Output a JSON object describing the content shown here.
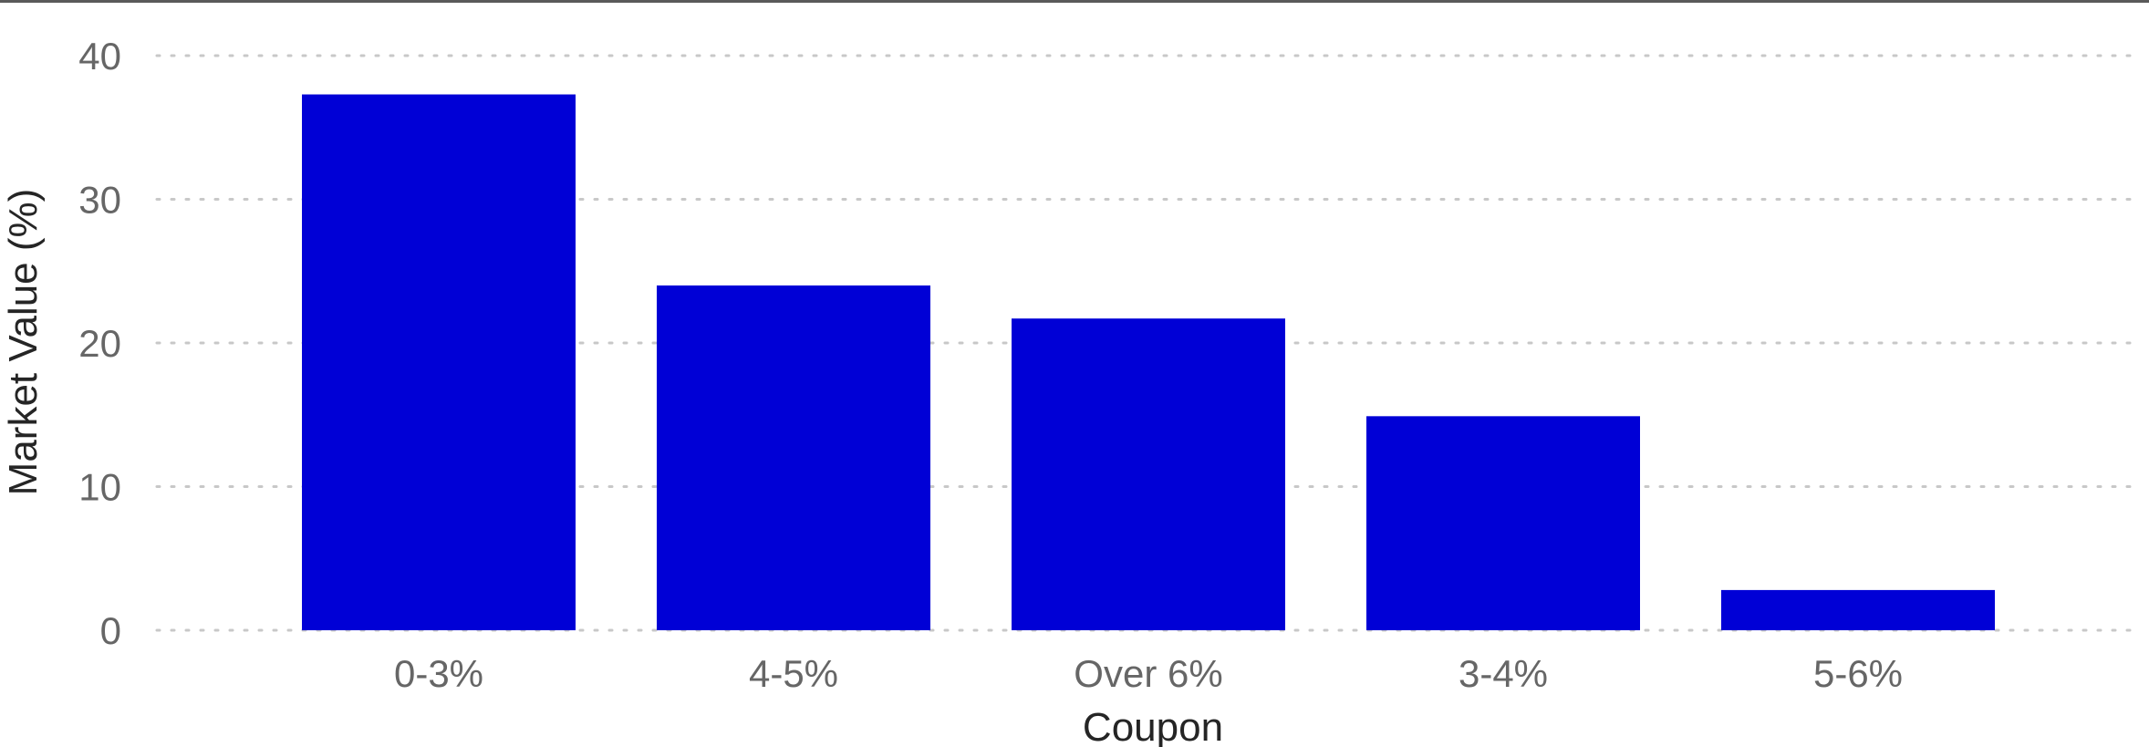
{
  "chart_data": {
    "type": "bar",
    "categories": [
      "0-3%",
      "4-5%",
      "Over 6%",
      "3-4%",
      "5-6%"
    ],
    "values": [
      37.3,
      24.0,
      21.7,
      14.9,
      2.8
    ],
    "xlabel": "Coupon",
    "ylabel": "Market Value (%)",
    "ylim": [
      0,
      40
    ],
    "yticks": [
      0,
      10,
      20,
      30,
      40
    ],
    "grid": true,
    "bar_color": "#0000d6",
    "grid_color": "#c8c8c8",
    "tick_color": "#666666",
    "title_color": "#252525"
  }
}
